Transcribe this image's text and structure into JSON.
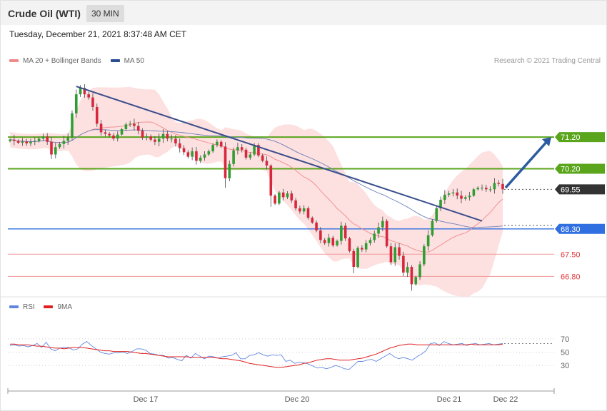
{
  "header": {
    "title": "Crude Oil (WTI)",
    "timeframe": "30 MIN"
  },
  "datetime": "Tuesday, December 21, 2021 8:37:48 AM CET",
  "copyright": "Research © 2021 Trading Central",
  "price_legend": [
    {
      "label": "MA 20 + Bollinger Bands",
      "color": "#f08a8a"
    },
    {
      "label": "MA 50",
      "color": "#2a4d8f"
    }
  ],
  "rsi_legend": [
    {
      "label": "RSI",
      "color": "#5f86e0"
    },
    {
      "label": "9MA",
      "color": "#e02020"
    }
  ],
  "levels": [
    {
      "value": 71.2,
      "label": "71.20",
      "kind": "resistance",
      "color": "#5aa51c"
    },
    {
      "value": 70.2,
      "label": "70.20",
      "kind": "resistance",
      "color": "#5aa51c"
    },
    {
      "value": 69.55,
      "label": "69.55",
      "kind": "last",
      "color": "#333333"
    },
    {
      "value": 68.3,
      "label": "68.30",
      "kind": "pivot",
      "color": "#2f6fe0"
    },
    {
      "value": 67.5,
      "label": "67.50",
      "kind": "support",
      "color": "#e03c3c"
    },
    {
      "value": 66.8,
      "label": "66.80",
      "kind": "support",
      "color": "#e03c3c"
    }
  ],
  "x_ticks": [
    "Dec 17",
    "Dec 20",
    "Dec 21",
    "Dec 22"
  ],
  "rsi_ticks": [
    70,
    50,
    30
  ],
  "chart_data": [
    {
      "type": "candlestick",
      "instrument": "Crude Oil (WTI)",
      "interval": "30 MIN",
      "y_range": [
        66.2,
        73.5
      ],
      "close": [
        71.12,
        71.08,
        71.02,
        71.06,
        71.0,
        71.05,
        71.08,
        71.15,
        71.22,
        71.05,
        70.65,
        70.88,
        70.98,
        71.08,
        71.18,
        71.95,
        72.55,
        72.75,
        72.55,
        72.45,
        72.15,
        71.62,
        71.35,
        71.3,
        71.25,
        71.15,
        71.28,
        71.45,
        71.6,
        71.62,
        71.55,
        71.4,
        71.18,
        71.22,
        71.12,
        71.05,
        71.15,
        71.3,
        71.15,
        71.15,
        71.0,
        70.85,
        70.72,
        70.58,
        70.75,
        70.45,
        70.55,
        70.65,
        70.75,
        70.95,
        71.05,
        70.9,
        69.9,
        70.35,
        70.78,
        70.88,
        70.8,
        70.55,
        70.65,
        70.95,
        70.62,
        70.45,
        70.3,
        69.35,
        69.1,
        69.45,
        69.3,
        69.42,
        69.2,
        68.95,
        68.85,
        68.95,
        68.65,
        68.5,
        68.25,
        67.95,
        67.85,
        68.02,
        67.78,
        67.92,
        68.4,
        68.0,
        67.6,
        67.1,
        67.7,
        67.65,
        67.85,
        67.95,
        68.15,
        68.35,
        68.55,
        67.75,
        67.25,
        67.72,
        67.45,
        66.92,
        67.1,
        66.55,
        66.78,
        67.18,
        67.75,
        68.1,
        68.55,
        68.95,
        69.22,
        69.38,
        69.42,
        69.45,
        69.35,
        69.25,
        69.3,
        69.35,
        69.55,
        69.6,
        69.6,
        69.55,
        69.55,
        69.75,
        69.72,
        69.55
      ]
    },
    {
      "type": "line",
      "series": [
        {
          "name": "RSI",
          "values": [
            60,
            61,
            59,
            60,
            58,
            60,
            63,
            57,
            65,
            55,
            52,
            56,
            57,
            57,
            53,
            55,
            62,
            66,
            60,
            55,
            50,
            48,
            47,
            49,
            49,
            50,
            48,
            51,
            55,
            55,
            53,
            48,
            47,
            45,
            45,
            41,
            42,
            39,
            37,
            45,
            41,
            48,
            44,
            40,
            44,
            43,
            41,
            43,
            44,
            45,
            49,
            40,
            40,
            45,
            46,
            49,
            46,
            44,
            46,
            45,
            46,
            36,
            38,
            33,
            35,
            34,
            32,
            29,
            26,
            27,
            25,
            27,
            30,
            28,
            25,
            24,
            30,
            36,
            36,
            38,
            39,
            36,
            40,
            44,
            48,
            43,
            40,
            42,
            40,
            38,
            43,
            47,
            52,
            63,
            64,
            60,
            66,
            63,
            61,
            62,
            63,
            60,
            62,
            63,
            61,
            62,
            63,
            61,
            62,
            63
          ]
        },
        {
          "name": "9MA",
          "values": [
            62,
            62,
            61,
            61,
            61,
            60,
            59,
            59,
            58,
            57,
            56,
            56,
            55,
            56,
            57,
            57,
            57,
            56,
            55,
            54,
            53,
            52,
            52,
            51,
            51,
            51,
            51,
            50,
            49,
            48,
            48,
            47,
            46,
            45,
            44,
            43,
            43,
            43,
            43,
            43,
            42,
            42,
            42,
            42,
            42,
            42,
            41,
            40,
            40,
            39,
            38,
            37,
            35,
            33,
            32,
            31,
            30,
            29,
            28,
            27,
            27,
            28,
            29,
            30,
            31,
            33,
            34,
            36,
            38,
            39,
            40,
            40,
            39,
            38,
            38,
            38,
            39,
            40,
            41,
            43,
            45,
            47,
            50,
            53,
            56,
            58,
            60,
            61,
            62,
            62,
            61,
            61,
            61,
            61,
            61,
            61,
            61,
            61,
            61,
            61,
            61,
            61,
            62,
            61,
            61,
            61,
            61,
            61,
            61,
            62
          ]
        }
      ],
      "y_range": [
        0,
        100
      ]
    }
  ]
}
